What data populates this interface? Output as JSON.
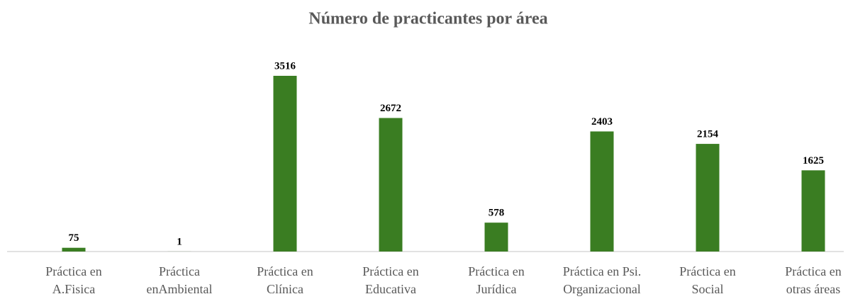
{
  "chart_data": {
    "type": "bar",
    "title": "Número de practicantes por área",
    "categories": [
      [
        "Práctica en",
        "A.Fisica"
      ],
      [
        "Práctica",
        "enAmbiental"
      ],
      [
        "Práctica en",
        "Clínica"
      ],
      [
        "Práctica en",
        "Educativa"
      ],
      [
        "Práctica en",
        "Jurídica"
      ],
      [
        "Práctica en Psi.",
        "Organizacional"
      ],
      [
        "Práctica en",
        "Social"
      ],
      [
        "Práctica en",
        "otras áreas"
      ]
    ],
    "values": [
      75,
      1,
      3516,
      2672,
      578,
      2403,
      2154,
      1625
    ],
    "color": "#3a7d22"
  }
}
